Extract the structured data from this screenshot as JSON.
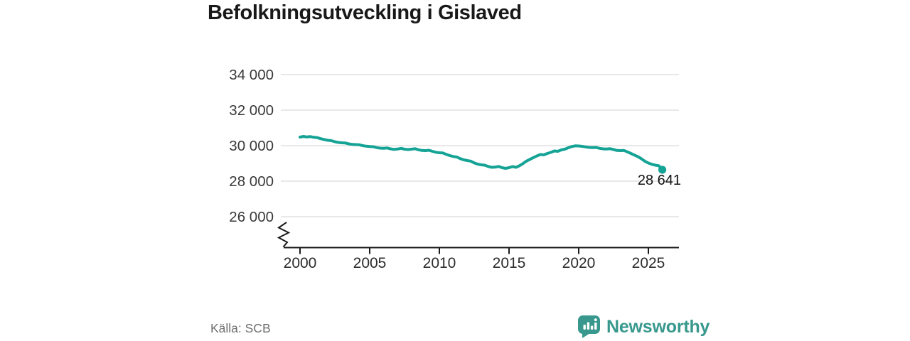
{
  "header": {
    "title": "Befolkningsutveckling i Gislaved"
  },
  "footer": {
    "source": "Källa: SCB",
    "brand": "Newsworthy",
    "brand_icon": "bar-chart-speech-bubble-icon"
  },
  "colors": {
    "line": "#15a396",
    "brand": "#38988d",
    "grid": "#d9d9d9",
    "axis": "#1a1a1a",
    "title_text": "#191919",
    "y_tick_text": "#3a3a3a",
    "x_tick_text": "#2c2c2c",
    "annotation_text": "#111111",
    "source_text": "#6e6e6e"
  },
  "chart_data": {
    "type": "line",
    "title": "Befolkningsutveckling i Gislaved",
    "xlabel": "",
    "ylabel": "",
    "grid": "horizontal-only",
    "y_axis_break": true,
    "ylim_gridlines": [
      26000,
      34000
    ],
    "x_start": 2000,
    "x_step": 0.25,
    "x_end": 2026,
    "y_ticks": [
      {
        "value": 34000,
        "label": "34 000"
      },
      {
        "value": 32000,
        "label": "32 000"
      },
      {
        "value": 30000,
        "label": "30 000"
      },
      {
        "value": 28000,
        "label": "28 000"
      },
      {
        "value": 26000,
        "label": "26 000"
      }
    ],
    "x_ticks": [
      {
        "value": 2000,
        "label": "2000"
      },
      {
        "value": 2005,
        "label": "2005"
      },
      {
        "value": 2010,
        "label": "2010"
      },
      {
        "value": 2015,
        "label": "2015"
      },
      {
        "value": 2020,
        "label": "2020"
      },
      {
        "value": 2025,
        "label": "2025"
      }
    ],
    "values": [
      30480,
      30520,
      30490,
      30510,
      30470,
      30450,
      30390,
      30340,
      30300,
      30280,
      30220,
      30180,
      30160,
      30150,
      30100,
      30070,
      30060,
      30050,
      30000,
      29970,
      29950,
      29940,
      29890,
      29860,
      29850,
      29870,
      29820,
      29790,
      29810,
      29850,
      29800,
      29780,
      29800,
      29830,
      29770,
      29730,
      29720,
      29740,
      29680,
      29630,
      29600,
      29590,
      29510,
      29440,
      29390,
      29360,
      29270,
      29200,
      29160,
      29130,
      29030,
      28960,
      28920,
      28900,
      28830,
      28780,
      28790,
      28830,
      28760,
      28720,
      28760,
      28820,
      28780,
      28870,
      28990,
      29130,
      29230,
      29330,
      29420,
      29500,
      29480,
      29560,
      29620,
      29700,
      29680,
      29760,
      29800,
      29880,
      29950,
      29990,
      29980,
      29960,
      29930,
      29900,
      29890,
      29900,
      29850,
      29820,
      29810,
      29830,
      29780,
      29730,
      29720,
      29730,
      29650,
      29560,
      29470,
      29380,
      29260,
      29120,
      29020,
      28950,
      28900,
      28870,
      28641
    ],
    "annotation": {
      "label": "28 641",
      "value": 28641
    }
  }
}
